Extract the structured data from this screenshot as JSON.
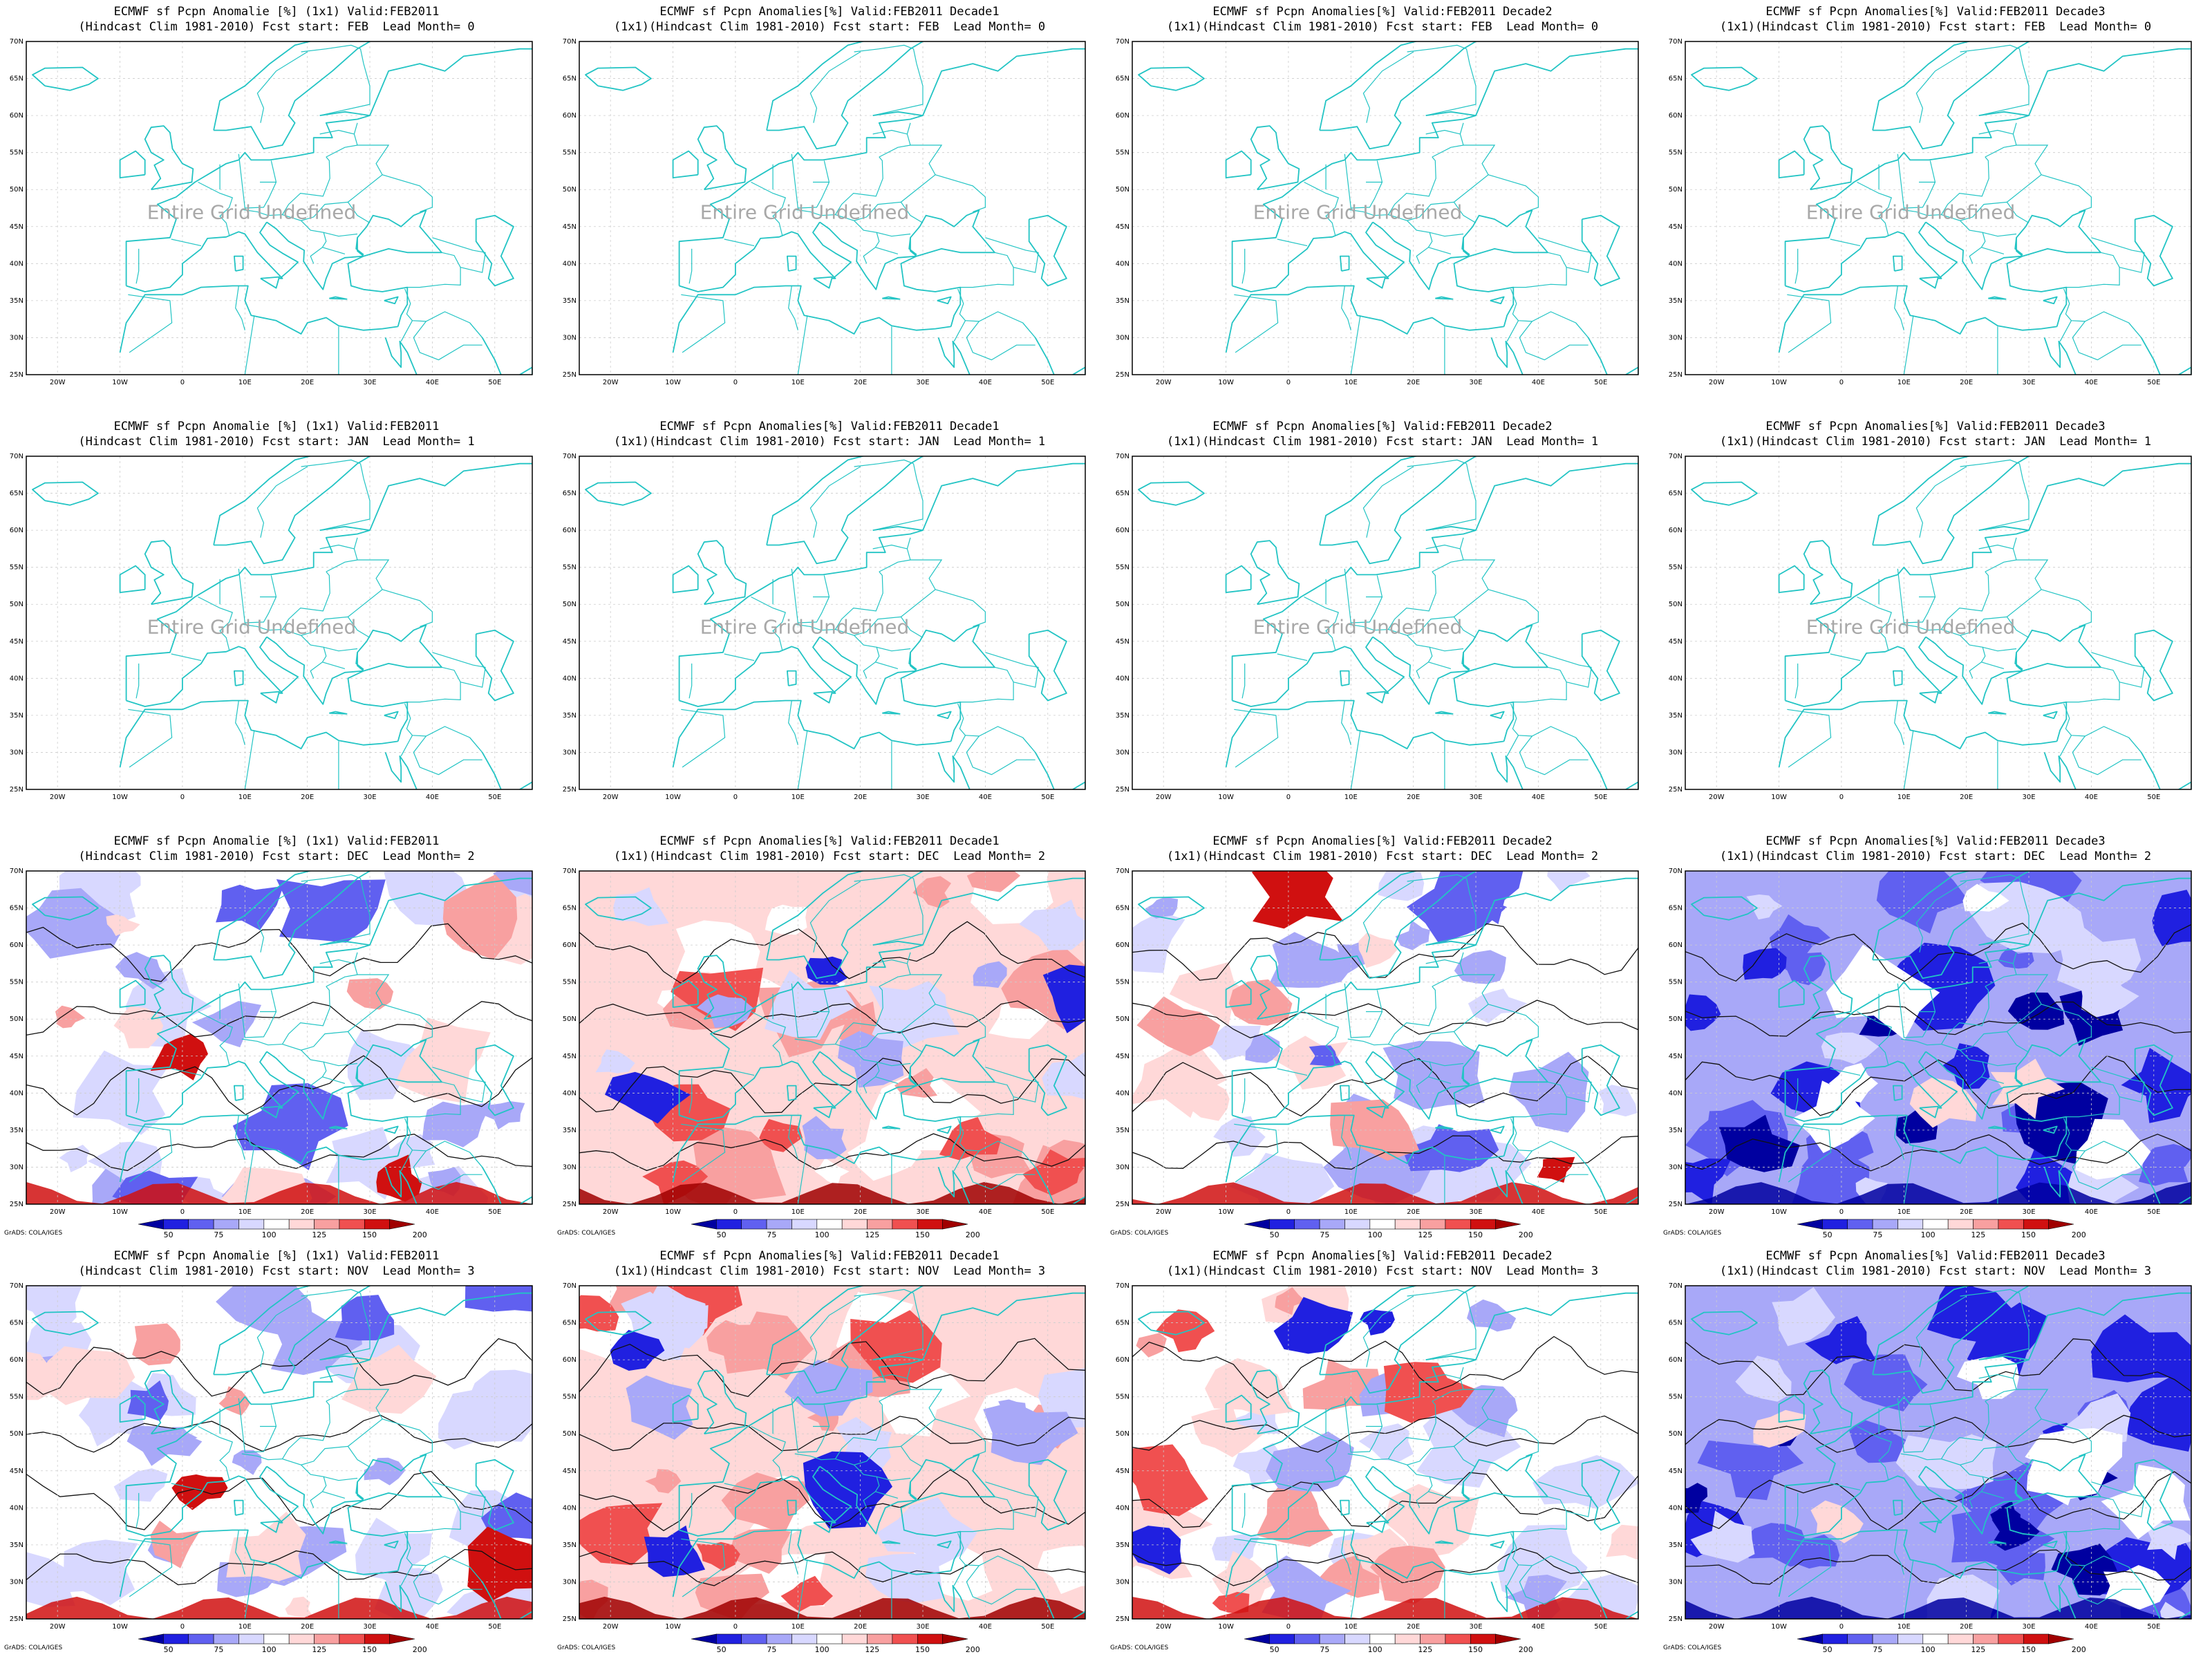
{
  "panels": [
    {
      "row": 0,
      "col": 0,
      "title1": "ECMWF sf Pcpn Anomalie [%] (1x1) Valid:FEB2011",
      "title2": "(Hindcast Clim 1981-2010) Fcst start: FEB  Lead Month= 0",
      "undefined_text": "Entire Grid Undefined",
      "style": "undefined"
    },
    {
      "row": 0,
      "col": 1,
      "title1": "ECMWF sf Pcpn Anomalies[%] Valid:FEB2011 Decade1",
      "title2": "(1x1)(Hindcast Clim 1981-2010) Fcst start: FEB  Lead Month= 0",
      "undefined_text": "Entire Grid Undefined",
      "style": "undefined"
    },
    {
      "row": 0,
      "col": 2,
      "title1": "ECMWF sf Pcpn Anomalies[%] Valid:FEB2011 Decade2",
      "title2": "(1x1)(Hindcast Clim 1981-2010) Fcst start: FEB  Lead Month= 0",
      "undefined_text": "Entire Grid Undefined",
      "style": "undefined"
    },
    {
      "row": 0,
      "col": 3,
      "title1": "ECMWF sf Pcpn Anomalies[%] Valid:FEB2011 Decade3",
      "title2": "(1x1)(Hindcast Clim 1981-2010) Fcst start: FEB  Lead Month= 0",
      "undefined_text": "Entire Grid Undefined",
      "style": "undefined"
    },
    {
      "row": 1,
      "col": 0,
      "title1": "ECMWF sf Pcpn Anomalie [%] (1x1) Valid:FEB2011",
      "title2": "(Hindcast Clim 1981-2010) Fcst start: JAN  Lead Month= 1",
      "undefined_text": "Entire Grid Undefined",
      "style": "undefined"
    },
    {
      "row": 1,
      "col": 1,
      "title1": "ECMWF sf Pcpn Anomalies[%] Valid:FEB2011 Decade1",
      "title2": "(1x1)(Hindcast Clim 1981-2010) Fcst start: JAN  Lead Month= 1",
      "undefined_text": "Entire Grid Undefined",
      "style": "undefined"
    },
    {
      "row": 1,
      "col": 2,
      "title1": "ECMWF sf Pcpn Anomalies[%] Valid:FEB2011 Decade2",
      "title2": "(1x1)(Hindcast Clim 1981-2010) Fcst start: JAN  Lead Month= 1",
      "undefined_text": "Entire Grid Undefined",
      "style": "undefined"
    },
    {
      "row": 1,
      "col": 3,
      "title1": "ECMWF sf Pcpn Anomalies[%] Valid:FEB2011 Decade3",
      "title2": "(1x1)(Hindcast Clim 1981-2010) Fcst start: JAN  Lead Month= 1",
      "undefined_text": "Entire Grid Undefined",
      "style": "undefined"
    },
    {
      "row": 2,
      "col": 0,
      "title1": "ECMWF sf Pcpn Anomalie [%] (1x1) Valid:FEB2011",
      "title2": "(Hindcast Clim 1981-2010) Fcst start: DEC  Lead Month= 2",
      "style": "mixed-blue"
    },
    {
      "row": 2,
      "col": 1,
      "title1": "ECMWF sf Pcpn Anomalies[%] Valid:FEB2011 Decade1",
      "title2": "(1x1)(Hindcast Clim 1981-2010) Fcst start: DEC  Lead Month= 2",
      "style": "mostly-red"
    },
    {
      "row": 2,
      "col": 2,
      "title1": "ECMWF sf Pcpn Anomalies[%] Valid:FEB2011 Decade2",
      "title2": "(1x1)(Hindcast Clim 1981-2010) Fcst start: DEC  Lead Month= 2",
      "style": "mixed-blue"
    },
    {
      "row": 2,
      "col": 3,
      "title1": "ECMWF sf Pcpn Anomalies[%] Valid:FEB2011 Decade3",
      "title2": "(1x1)(Hindcast Clim 1981-2010) Fcst start: DEC  Lead Month= 2",
      "style": "deep-blue"
    },
    {
      "row": 3,
      "col": 0,
      "title1": "ECMWF sf Pcpn Anomalie [%] (1x1) Valid:FEB2011",
      "title2": "(Hindcast Clim 1981-2010) Fcst start: NOV  Lead Month= 3",
      "style": "mixed-blue"
    },
    {
      "row": 3,
      "col": 1,
      "title1": "ECMWF sf Pcpn Anomalies[%] Valid:FEB2011 Decade1",
      "title2": "(1x1)(Hindcast Clim 1981-2010) Fcst start: NOV  Lead Month= 3",
      "style": "mostly-red"
    },
    {
      "row": 3,
      "col": 2,
      "title1": "ECMWF sf Pcpn Anomalies[%] Valid:FEB2011 Decade2",
      "title2": "(1x1)(Hindcast Clim 1981-2010) Fcst start: NOV  Lead Month= 3",
      "style": "mixed-red"
    },
    {
      "row": 3,
      "col": 3,
      "title1": "ECMWF sf Pcpn Anomalies[%] Valid:FEB2011 Decade3",
      "title2": "(1x1)(Hindcast Clim 1981-2010) Fcst start: NOV  Lead Month= 3",
      "style": "deep-blue"
    }
  ],
  "lat_labels": [
    "70N",
    "65N",
    "60N",
    "55N",
    "50N",
    "45N",
    "40N",
    "35N",
    "30N",
    "25N"
  ],
  "lon_labels": [
    "20W",
    "10W",
    "0",
    "10E",
    "20E",
    "30E",
    "40E",
    "50E"
  ],
  "colorbar": {
    "labels": [
      "50",
      "75",
      "100",
      "125",
      "150",
      "200"
    ],
    "colors": [
      "#0000a0",
      "#2020e0",
      "#6060f0",
      "#a8a8f8",
      "#d8d8ff",
      "#ffffff",
      "#ffd8d8",
      "#f8a0a0",
      "#f05050",
      "#d01010",
      "#a00000"
    ]
  },
  "credit": "GrADS: COLA/IGES",
  "palette": {
    "coast": "#22c4c4",
    "undefined_text": "#a8a8a8"
  }
}
